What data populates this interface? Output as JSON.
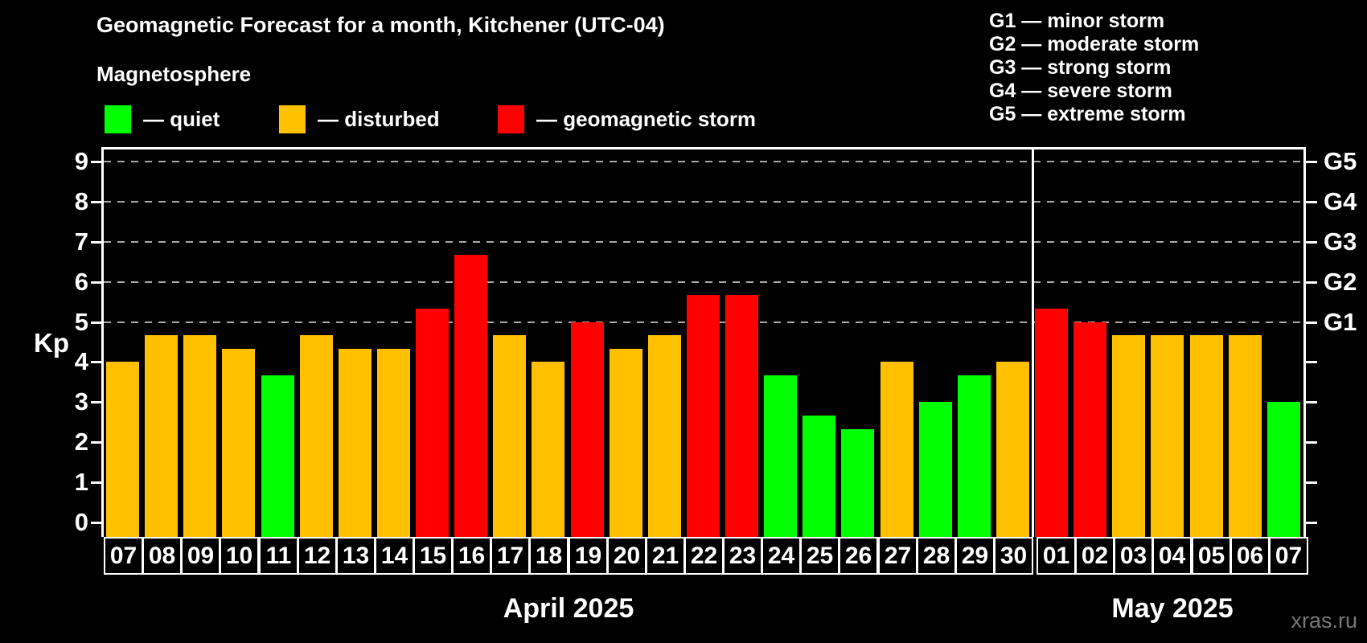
{
  "header": {
    "title": "Geomagnetic Forecast for a month, Kitchener (UTC-04)",
    "subtitle": "Magnetosphere"
  },
  "legend": {
    "items": [
      {
        "key": "quiet",
        "label": "— quiet",
        "color": "#00ff00"
      },
      {
        "key": "disturbed",
        "label": "— disturbed",
        "color": "#ffc000"
      },
      {
        "key": "storm",
        "label": "— geomagnetic storm",
        "color": "#ff0000"
      }
    ]
  },
  "g_legend": [
    "G1 — minor storm",
    "G2 — moderate storm",
    "G3 — strong storm",
    "G4 — severe storm",
    "G5 — extreme storm"
  ],
  "axes": {
    "y_label": "Kp",
    "y_ticks": [
      0,
      1,
      2,
      3,
      4,
      5,
      6,
      7,
      8,
      9
    ],
    "grid_levels": [
      5,
      6,
      7,
      8,
      9
    ],
    "right_labels": [
      {
        "label": "G1",
        "kp": 5
      },
      {
        "label": "G2",
        "kp": 6
      },
      {
        "label": "G3",
        "kp": 7
      },
      {
        "label": "G4",
        "kp": 8
      },
      {
        "label": "G5",
        "kp": 9
      }
    ]
  },
  "watermark": "xras.ru",
  "chart_data": {
    "type": "bar",
    "title": "Geomagnetic Forecast for a month, Kitchener (UTC-04)",
    "subtitle": "Magnetosphere",
    "xlabel": "",
    "ylabel": "Kp",
    "ylim": [
      0,
      9
    ],
    "grid": "horizontal dashed lines at Kp 5,6,7,8,9 (G1..G5)",
    "legend_position": "top-left",
    "color_by_status": {
      "quiet": "#00ff00",
      "disturbed": "#ffc000",
      "storm": "#ff0000"
    },
    "months": [
      {
        "label": "April 2025",
        "days": [
          {
            "day": "07",
            "kp": 4.0,
            "status": "disturbed"
          },
          {
            "day": "08",
            "kp": 4.67,
            "status": "disturbed"
          },
          {
            "day": "09",
            "kp": 4.67,
            "status": "disturbed"
          },
          {
            "day": "10",
            "kp": 4.33,
            "status": "disturbed"
          },
          {
            "day": "11",
            "kp": 3.67,
            "status": "quiet"
          },
          {
            "day": "12",
            "kp": 4.67,
            "status": "disturbed"
          },
          {
            "day": "13",
            "kp": 4.33,
            "status": "disturbed"
          },
          {
            "day": "14",
            "kp": 4.33,
            "status": "disturbed"
          },
          {
            "day": "15",
            "kp": 5.33,
            "status": "storm"
          },
          {
            "day": "16",
            "kp": 6.67,
            "status": "storm"
          },
          {
            "day": "17",
            "kp": 4.67,
            "status": "disturbed"
          },
          {
            "day": "18",
            "kp": 4.0,
            "status": "disturbed"
          },
          {
            "day": "19",
            "kp": 5.0,
            "status": "storm"
          },
          {
            "day": "20",
            "kp": 4.33,
            "status": "disturbed"
          },
          {
            "day": "21",
            "kp": 4.67,
            "status": "disturbed"
          },
          {
            "day": "22",
            "kp": 5.67,
            "status": "storm"
          },
          {
            "day": "23",
            "kp": 5.67,
            "status": "storm"
          },
          {
            "day": "24",
            "kp": 3.67,
            "status": "quiet"
          },
          {
            "day": "25",
            "kp": 2.67,
            "status": "quiet"
          },
          {
            "day": "26",
            "kp": 2.33,
            "status": "quiet"
          },
          {
            "day": "27",
            "kp": 4.0,
            "status": "disturbed"
          },
          {
            "day": "28",
            "kp": 3.0,
            "status": "quiet"
          },
          {
            "day": "29",
            "kp": 3.67,
            "status": "quiet"
          },
          {
            "day": "30",
            "kp": 4.0,
            "status": "disturbed"
          }
        ]
      },
      {
        "label": "May 2025",
        "days": [
          {
            "day": "01",
            "kp": 5.33,
            "status": "storm"
          },
          {
            "day": "02",
            "kp": 5.0,
            "status": "storm"
          },
          {
            "day": "03",
            "kp": 4.67,
            "status": "disturbed"
          },
          {
            "day": "04",
            "kp": 4.67,
            "status": "disturbed"
          },
          {
            "day": "05",
            "kp": 4.67,
            "status": "disturbed"
          },
          {
            "day": "06",
            "kp": 4.67,
            "status": "disturbed"
          },
          {
            "day": "07",
            "kp": 3.0,
            "status": "quiet"
          }
        ]
      }
    ]
  }
}
